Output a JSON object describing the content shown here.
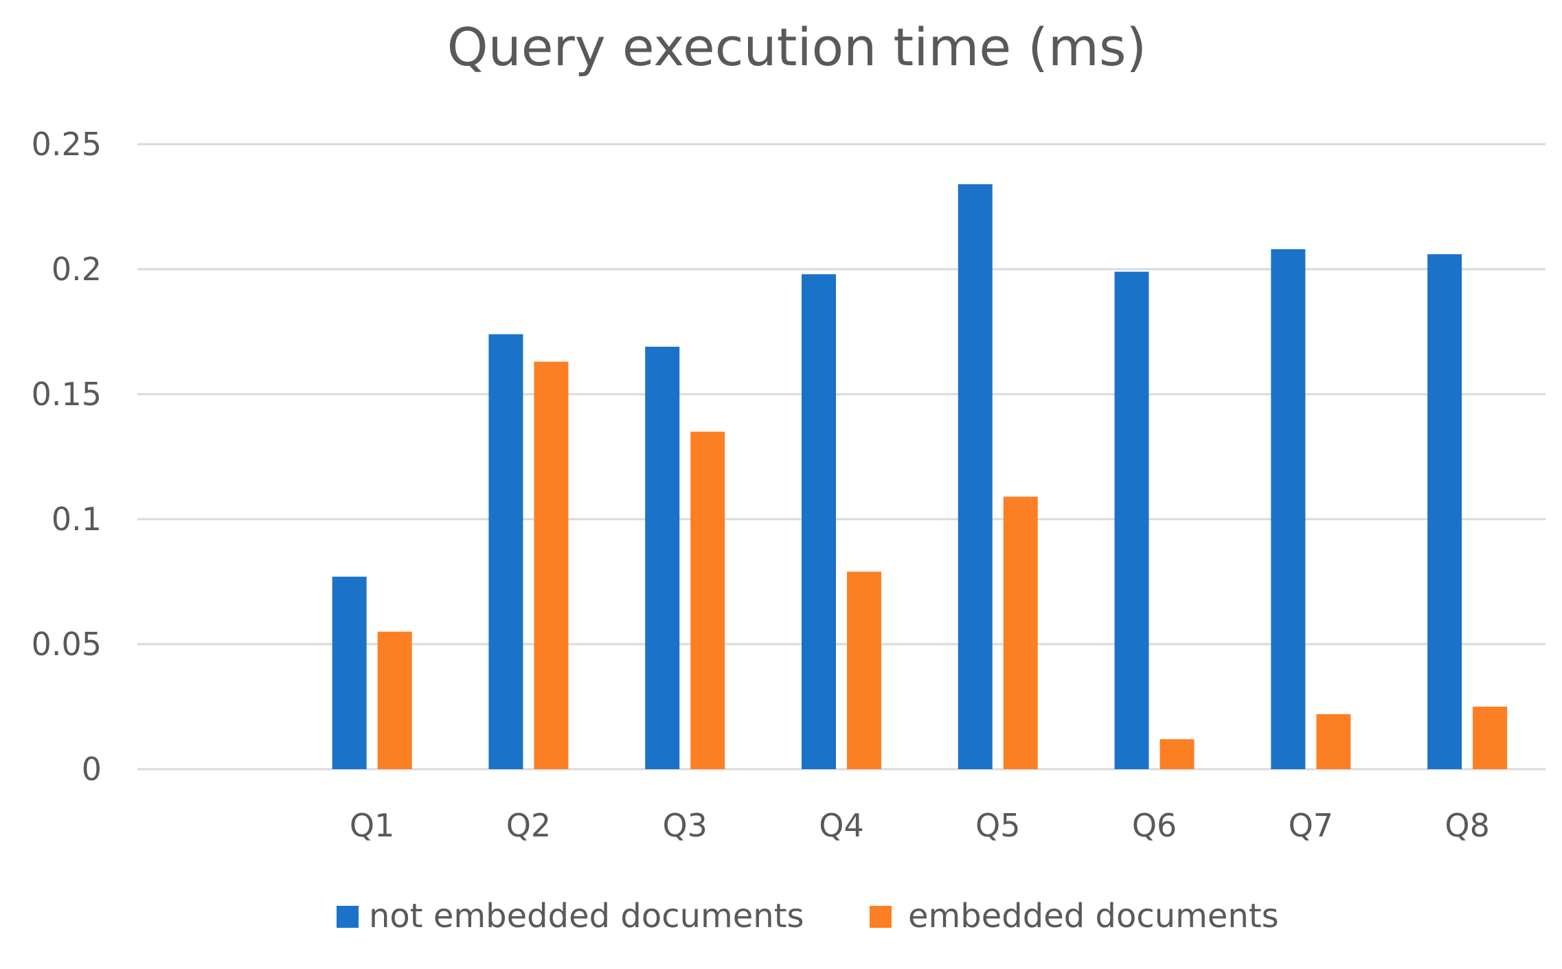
{
  "chart_data": {
    "type": "bar",
    "title": "Query execution time (ms)",
    "xlabel": "",
    "ylabel": "",
    "ylim": [
      0,
      0.25
    ],
    "yticks": [
      "0",
      "0.05",
      "0.1",
      "0.15",
      "0.2",
      "0.25"
    ],
    "ytick_values": [
      0,
      0.05,
      0.1,
      0.15,
      0.2,
      0.25
    ],
    "categories": [
      "",
      "Q1",
      "Q2",
      "Q3",
      "Q4",
      "Q5",
      "Q6",
      "Q7",
      "Q8"
    ],
    "series": [
      {
        "name": "not embedded documents",
        "color": "#1a73c9",
        "values": [
          null,
          0.077,
          0.174,
          0.169,
          0.198,
          0.234,
          0.199,
          0.208,
          0.206
        ]
      },
      {
        "name": "embedded documents",
        "color": "#fd7f24",
        "values": [
          null,
          0.055,
          0.163,
          0.135,
          0.079,
          0.109,
          0.012,
          0.022,
          0.025
        ]
      }
    ],
    "grid": true,
    "legend_position": "bottom"
  }
}
